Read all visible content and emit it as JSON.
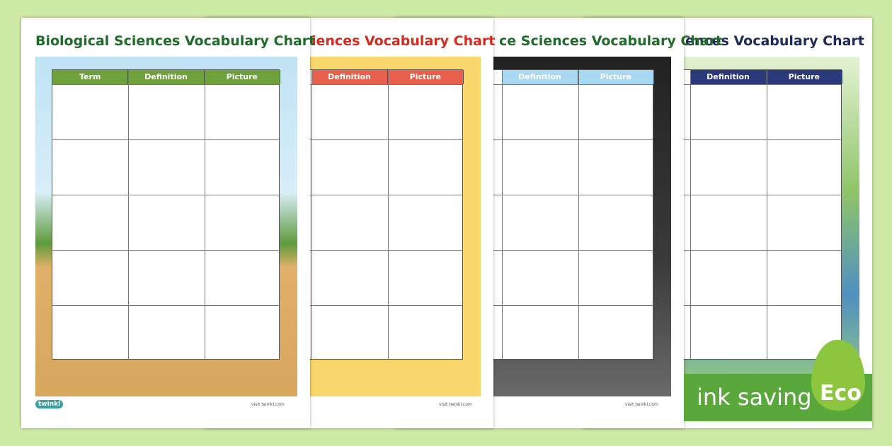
{
  "sheets": [
    {
      "title": "Biological Sciences Vocabulary Chart",
      "headers": [
        "Term",
        "Definition",
        "Picture"
      ],
      "logo": "twinkl",
      "url": "visit twinkl.com"
    },
    {
      "title": "iences Vocabulary Chart",
      "headers": [
        "Definition",
        "Picture"
      ],
      "url": "visit twinkl.com"
    },
    {
      "title": "ce Sciences Vocabulary Chart",
      "headers": [
        "Definition",
        "Picture"
      ],
      "url": "visit twinkl.com"
    },
    {
      "title": "ences Vocabulary Chart",
      "headers": [
        "Definition",
        "Picture"
      ]
    }
  ],
  "badge": {
    "text": "ink saving",
    "label": "Eco"
  }
}
